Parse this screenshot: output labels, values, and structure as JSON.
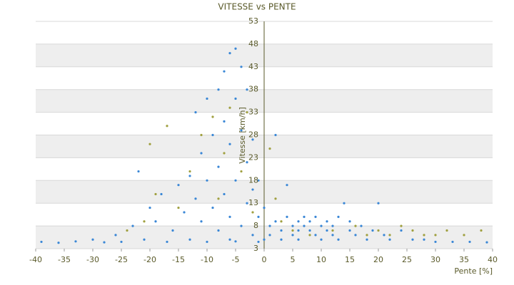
{
  "chart_data": {
    "type": "scatter",
    "title": "VITESSE vs PENTE",
    "x_label": "Pente [%]",
    "y_label": "Vitesse [km/h]",
    "xlim": [
      -40,
      40
    ],
    "xticks": [
      -40,
      -35,
      -30,
      -25,
      -20,
      -15,
      -10,
      -5,
      0,
      5,
      10,
      15,
      20,
      25,
      30,
      35,
      40
    ],
    "ylim": [
      3,
      53
    ],
    "yticks": [
      3,
      8,
      13,
      18,
      23,
      28,
      33,
      38,
      43,
      48,
      53
    ],
    "grid": true,
    "series": [
      {
        "color": "#3a87d6",
        "x": [
          -39,
          -36,
          -33,
          -30,
          -28,
          -26,
          -25,
          -23,
          -22,
          -21,
          -20,
          -19,
          -18,
          -17,
          -16,
          -15,
          -14,
          -13,
          -13,
          -12,
          -12,
          -11,
          -11,
          -10,
          -10,
          -10,
          -9,
          -9,
          -8,
          -8,
          -8,
          -7,
          -7,
          -7,
          -6,
          -6,
          -6,
          -6,
          -5,
          -5,
          -5,
          -5,
          -4,
          -4,
          -4,
          -3,
          -3,
          -3,
          -2,
          -2,
          -2,
          -1,
          -1,
          -1,
          0,
          0,
          1,
          1,
          2,
          2,
          3,
          3,
          4,
          4,
          5,
          5,
          6,
          6,
          6,
          7,
          7,
          8,
          8,
          9,
          9,
          10,
          10,
          11,
          11,
          12,
          12,
          13,
          13,
          14,
          15,
          15,
          16,
          17,
          18,
          19,
          20,
          21,
          22,
          24,
          26,
          28,
          30,
          33,
          36,
          39
        ],
        "y": [
          4.5,
          4.3,
          4.6,
          5,
          4.4,
          6,
          4.5,
          8,
          20,
          5,
          12,
          9,
          15,
          4.5,
          7,
          17,
          11,
          19,
          5,
          14,
          33,
          9,
          24,
          18,
          36,
          4.5,
          12,
          28,
          38,
          7,
          21,
          15,
          42,
          31,
          46,
          10,
          26,
          5,
          47,
          18,
          36,
          4.6,
          43,
          8,
          29,
          22,
          13,
          38,
          16,
          6,
          27,
          10,
          18,
          4.5,
          12,
          5,
          8,
          6,
          28,
          9,
          7,
          5,
          17,
          10,
          8,
          6,
          9,
          7,
          5,
          10,
          8,
          7,
          9,
          6,
          10,
          8,
          5,
          7,
          9,
          6,
          8,
          10,
          5,
          13,
          7,
          9,
          6,
          8,
          5,
          7,
          13,
          6,
          5,
          7,
          5,
          5,
          4.5,
          4.5,
          4.5,
          4.4
        ]
      },
      {
        "color": "#a0a040",
        "x": [
          -24,
          -21,
          -20,
          -19,
          -17,
          -15,
          -13,
          -11,
          -9,
          -8,
          -7,
          -6,
          -4,
          -3,
          -2,
          1,
          2,
          3,
          5,
          8,
          12,
          16,
          18,
          20,
          22,
          24,
          26,
          28,
          30,
          32,
          35,
          38
        ],
        "y": [
          7,
          9,
          26,
          15,
          30,
          12,
          20,
          28,
          32,
          14,
          24,
          34,
          20,
          33,
          11,
          25,
          14,
          9,
          7,
          6,
          7,
          8,
          6,
          7,
          6,
          8,
          7,
          6,
          6,
          7,
          6,
          7
        ]
      }
    ]
  }
}
